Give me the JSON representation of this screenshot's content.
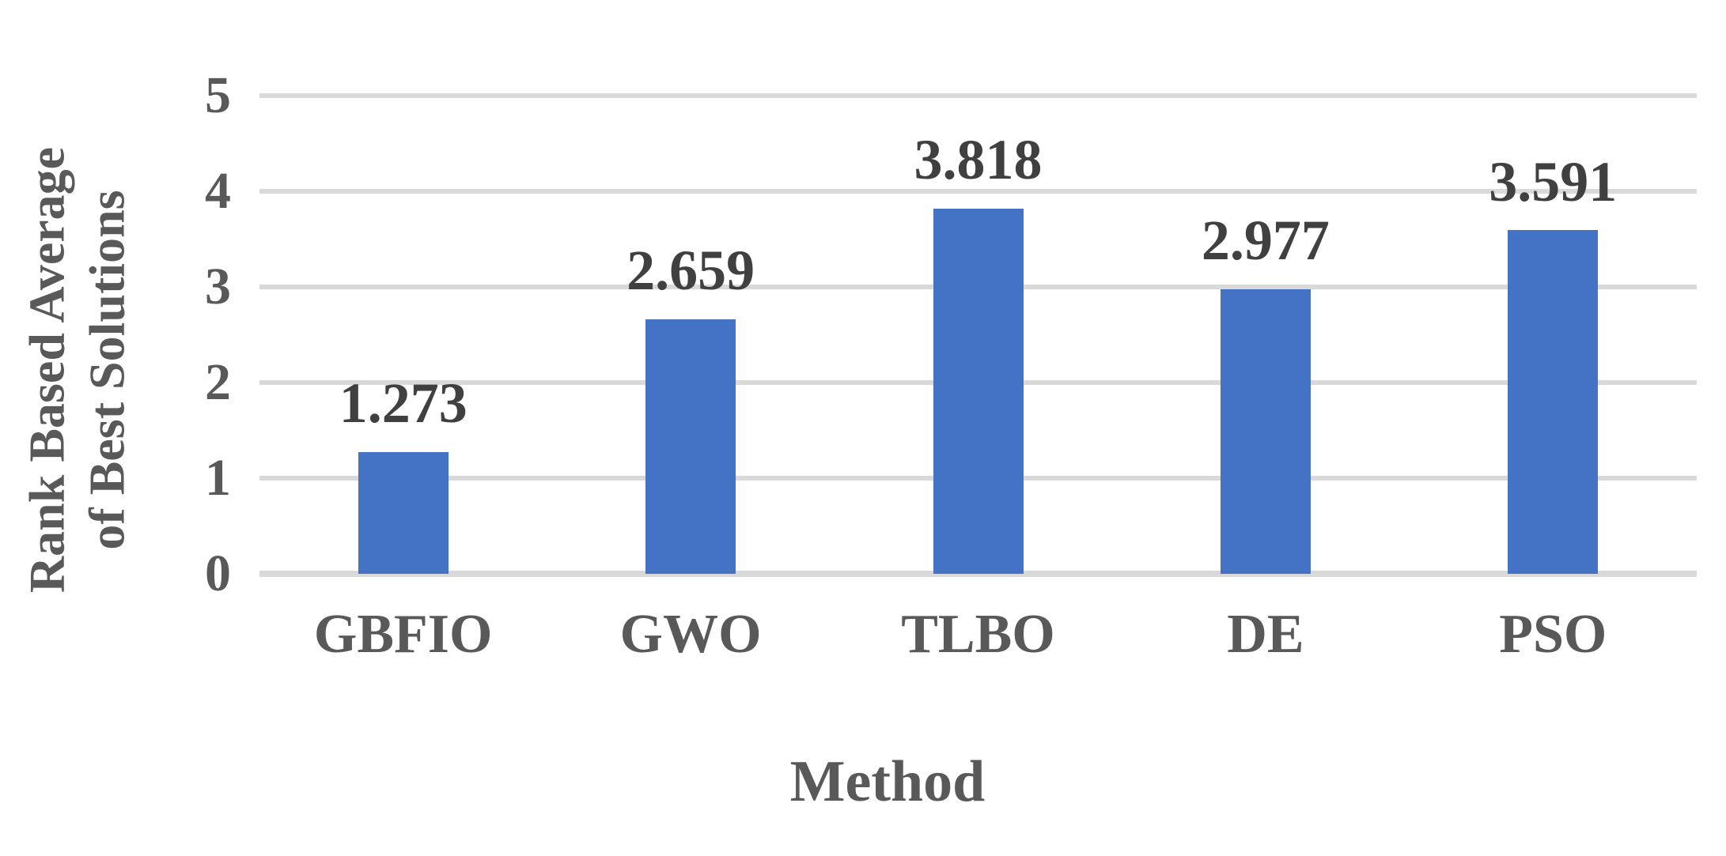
{
  "chart_data": {
    "type": "bar",
    "categories": [
      "GBFIO",
      "GWO",
      "TLBO",
      "DE",
      "PSO"
    ],
    "values": [
      1.273,
      2.659,
      3.818,
      2.977,
      3.591
    ],
    "data_labels": [
      "1.273",
      "2.659",
      "3.818",
      "2.977",
      "3.591"
    ],
    "title": "",
    "xlabel": "Method",
    "ylabel": "Rank Based Average of Best Solutions",
    "ylabel_line1": "Rank Based Average",
    "ylabel_line2": "of Best Solutions",
    "ylim": [
      0,
      5
    ],
    "yticks": [
      "0",
      "1",
      "2",
      "3",
      "4",
      "5"
    ],
    "grid": "horizontal",
    "legend": "none",
    "colors": {
      "bar_fill": "#4472C4",
      "gridline": "#D9D9D9",
      "axis_text": "#595959",
      "data_label_text": "#404040",
      "background": "#FFFFFF"
    }
  }
}
